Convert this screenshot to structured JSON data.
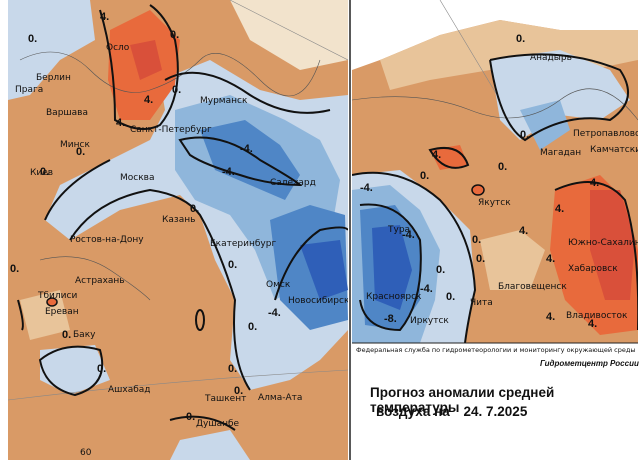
{
  "map": {
    "title_line1": "Прогноз аномалии средней температуры",
    "title_line2_prefix": "воздуха на",
    "title_line2_date": "24. 7.2025",
    "credit_line1": "Федеральная служба по гидрометеорологии и мониторингу окружающей среды",
    "credit_line2": "Гидрометцентр России",
    "colors": {
      "warm_strong": "#e86a3c",
      "warm": "#d99a66",
      "warm_light": "#e8c49a",
      "neutral": "#f2e3cc",
      "cool_light": "#c8d8ea",
      "cool": "#8fb6db",
      "cool_strong": "#4f86c6",
      "cold": "#2f5fb8"
    },
    "west_cities": [
      "Осло",
      "Берлин",
      "Прага",
      "Варшава",
      "Минск",
      "Санкт-Петербург",
      "Мурманск",
      "Киев",
      "Москва",
      "Казань",
      "Ростов-на-Дону",
      "Екатеринбург",
      "Салехард",
      "Астрахань",
      "Тбилиси",
      "Ереван",
      "Омск",
      "Новосибирск",
      "Баку",
      "Ашхабад",
      "Ташкент",
      "Алма-Ата",
      "Душанбе"
    ],
    "east_cities": [
      "Анадырь",
      "Петропавловск",
      "Магадан",
      "Камчатский",
      "Якутск",
      "Тура",
      "Южно-Сахалинск",
      "Хабаровск",
      "Благовещенск",
      "Красноярск",
      "Иркутск",
      "Чита",
      "Владивосток"
    ],
    "iso_values": {
      "zero": "0.",
      "plus4": "4.",
      "minus4": "-4.",
      "minus8": "-8."
    },
    "graticule_label": "60"
  }
}
